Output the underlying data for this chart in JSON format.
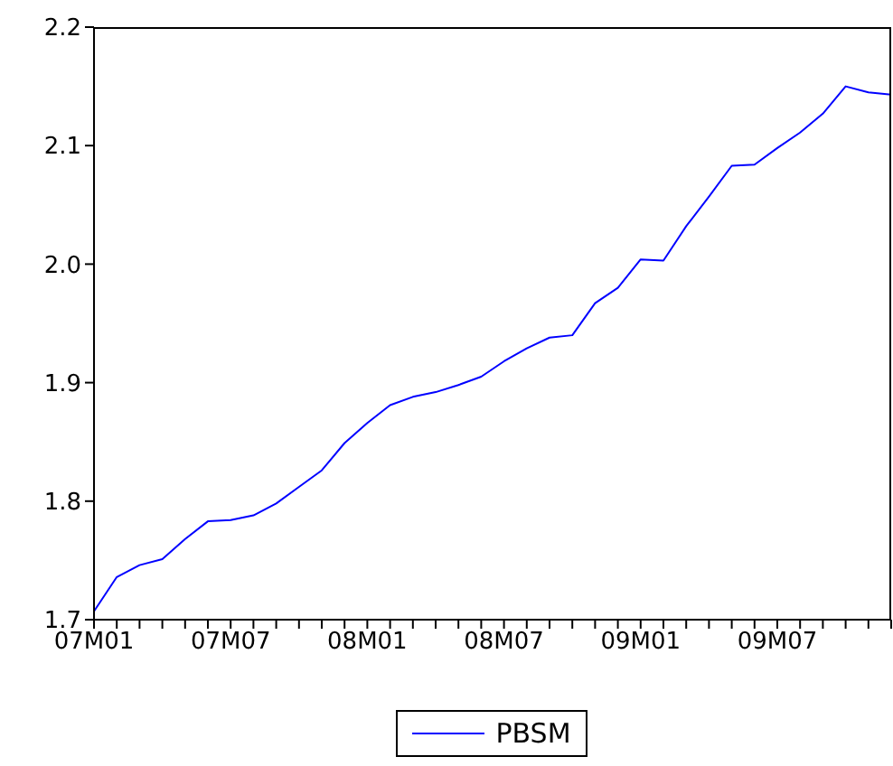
{
  "chart_data": {
    "type": "line",
    "x": [
      "2007-01",
      "2007-02",
      "2007-03",
      "2007-04",
      "2007-05",
      "2007-06",
      "2007-07",
      "2007-08",
      "2007-09",
      "2007-10",
      "2007-11",
      "2007-12",
      "2008-01",
      "2008-02",
      "2008-03",
      "2008-04",
      "2008-05",
      "2008-06",
      "2008-07",
      "2008-08",
      "2008-09",
      "2008-10",
      "2008-11",
      "2008-12",
      "2009-01",
      "2009-02",
      "2009-03",
      "2009-04",
      "2009-05",
      "2009-06",
      "2009-07",
      "2009-08",
      "2009-09",
      "2009-10",
      "2009-11",
      "2009-12"
    ],
    "series": [
      {
        "name": "PBSM",
        "color": "#0000ff",
        "values": [
          1.707,
          1.736,
          1.746,
          1.751,
          1.768,
          1.783,
          1.784,
          1.788,
          1.798,
          1.812,
          1.826,
          1.849,
          1.866,
          1.881,
          1.888,
          1.892,
          1.898,
          1.905,
          1.918,
          1.929,
          1.938,
          1.94,
          1.967,
          1.98,
          2.004,
          2.003,
          2.032,
          2.057,
          2.083,
          2.084,
          2.098,
          2.111,
          2.127,
          2.15,
          2.145,
          2.143
        ]
      }
    ],
    "xlim": [
      "2007-01",
      "2009-12"
    ],
    "xticks": [
      {
        "value": "2007-01",
        "label": "07M01"
      },
      {
        "value": "2007-02",
        "label": null
      },
      {
        "value": "2007-03",
        "label": null
      },
      {
        "value": "2007-04",
        "label": null
      },
      {
        "value": "2007-05",
        "label": null
      },
      {
        "value": "2007-06",
        "label": null
      },
      {
        "value": "2007-07",
        "label": "07M07"
      },
      {
        "value": "2007-08",
        "label": null
      },
      {
        "value": "2007-09",
        "label": null
      },
      {
        "value": "2007-10",
        "label": null
      },
      {
        "value": "2007-11",
        "label": null
      },
      {
        "value": "2007-12",
        "label": null
      },
      {
        "value": "2008-01",
        "label": "08M01"
      },
      {
        "value": "2008-02",
        "label": null
      },
      {
        "value": "2008-03",
        "label": null
      },
      {
        "value": "2008-04",
        "label": null
      },
      {
        "value": "2008-05",
        "label": null
      },
      {
        "value": "2008-06",
        "label": null
      },
      {
        "value": "2008-07",
        "label": "08M07"
      },
      {
        "value": "2008-08",
        "label": null
      },
      {
        "value": "2008-09",
        "label": null
      },
      {
        "value": "2008-10",
        "label": null
      },
      {
        "value": "2008-11",
        "label": null
      },
      {
        "value": "2008-12",
        "label": null
      },
      {
        "value": "2009-01",
        "label": "09M01"
      },
      {
        "value": "2009-02",
        "label": null
      },
      {
        "value": "2009-03",
        "label": null
      },
      {
        "value": "2009-04",
        "label": null
      },
      {
        "value": "2009-05",
        "label": null
      },
      {
        "value": "2009-06",
        "label": null
      },
      {
        "value": "2009-07",
        "label": "09M07"
      },
      {
        "value": "2009-08",
        "label": null
      },
      {
        "value": "2009-09",
        "label": null
      },
      {
        "value": "2009-10",
        "label": null
      },
      {
        "value": "2009-11",
        "label": null
      },
      {
        "value": "2009-12",
        "label": null
      }
    ],
    "ylim": [
      1.7,
      2.2
    ],
    "yticks": [
      1.7,
      1.8,
      1.9,
      {
        "value": 2,
        "label": "2.0"
      },
      2.1,
      2.2
    ],
    "grid": false,
    "legend": "bottom",
    "marker": "none",
    "line_style": "solid"
  }
}
